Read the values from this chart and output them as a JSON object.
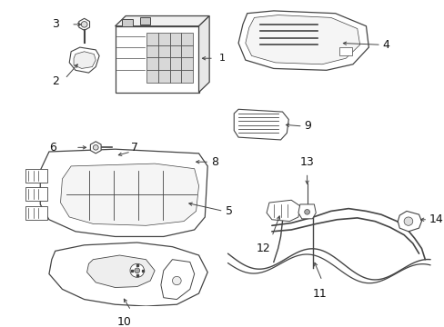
{
  "bg_color": "#ffffff",
  "line_color": "#444444",
  "label_color": "#111111",
  "fig_w": 4.89,
  "fig_h": 3.6,
  "dpi": 100
}
